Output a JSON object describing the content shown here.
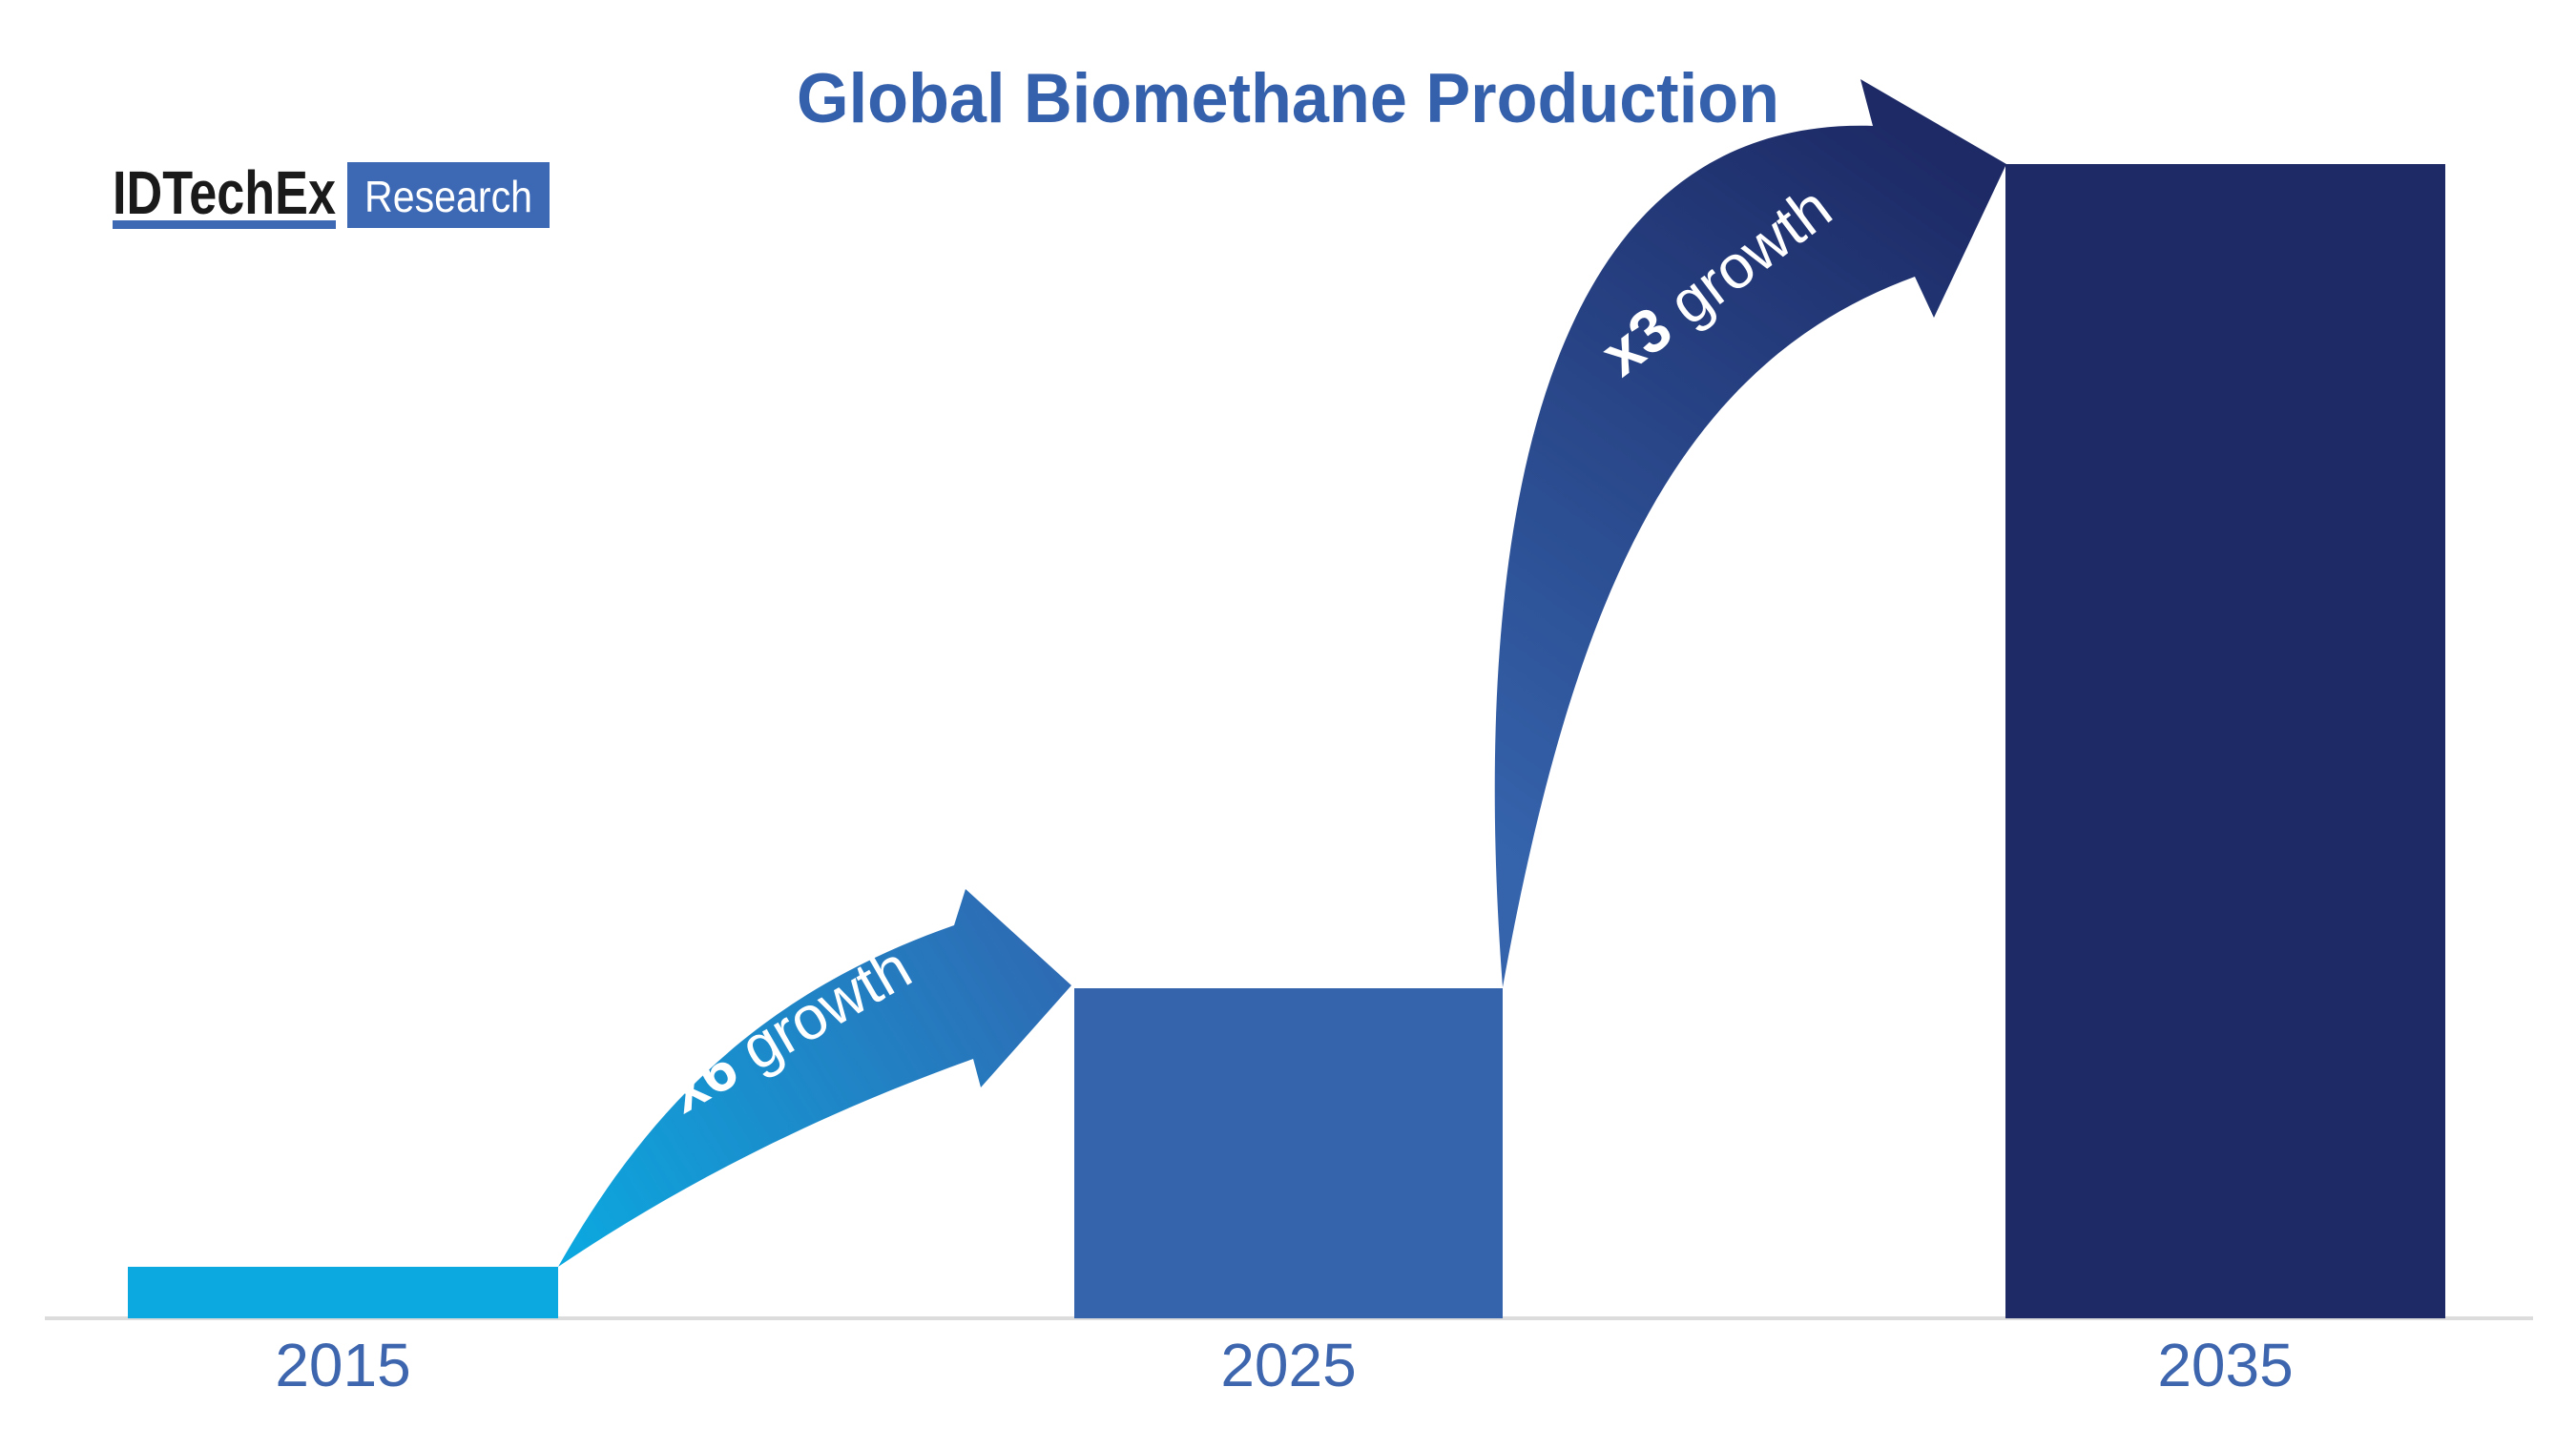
{
  "logo": {
    "brand": "IDTechEx",
    "sub": "Research"
  },
  "chart_data": {
    "type": "bar",
    "title": "Global Biomethane Production",
    "categories": [
      "2015",
      "2025",
      "2035"
    ],
    "values": [
      1,
      6.4,
      22.4
    ],
    "values_unit": "relative production level as drawn (no numeric y-axis shown)",
    "growth_2015_to_2025": "x6",
    "growth_2025_to_2035": "x3",
    "annotations": [
      {
        "bold": "x6",
        "rest": " growth"
      },
      {
        "bold": "x3",
        "rest": " growth"
      }
    ],
    "xlabel": "",
    "ylabel": "",
    "legend": "none",
    "grid": "off",
    "colors": {
      "title": "#3560AC",
      "axis_labels": "#3D66AE",
      "baseline": "#DCDCDC",
      "bar_2015": "#0BA9E0",
      "bar_2025": "#3564AD",
      "bar_2035": "#1D2A66",
      "arrow1_start": "#0BA9E0",
      "arrow1_end": "#2F69B2",
      "arrow2_start": "#3564AD",
      "arrow2_end": "#1D2A66",
      "logo_text": "#1A1A1A",
      "logo_accent": "#3C68B4",
      "logo_sub_text": "#FFFFFF"
    }
  }
}
